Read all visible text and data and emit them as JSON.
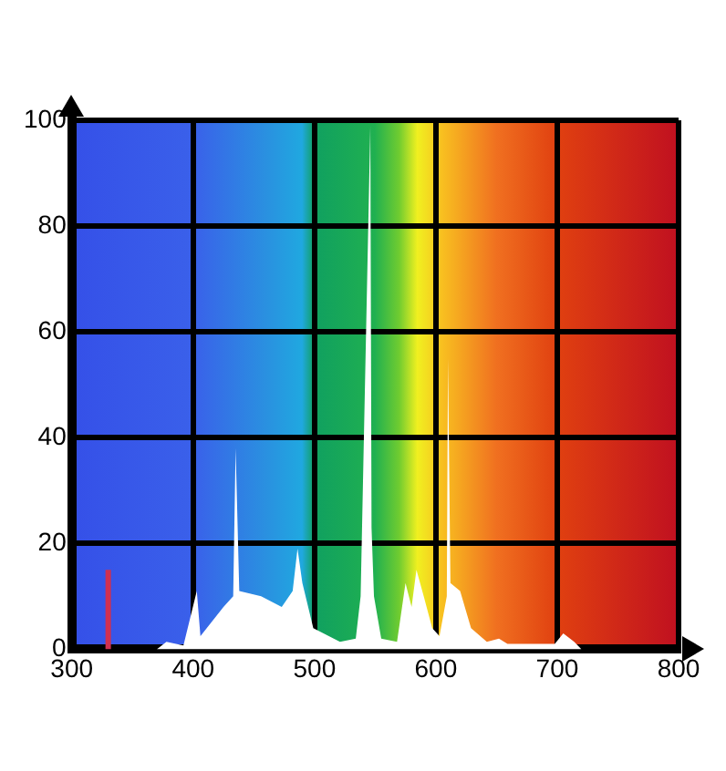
{
  "chart_data": {
    "type": "area",
    "xlim": [
      300,
      800
    ],
    "xticks": [
      300,
      400,
      500,
      600,
      700,
      800
    ],
    "ylim": [
      0,
      100
    ],
    "yticks": [
      0,
      20,
      40,
      60,
      80,
      100
    ],
    "grid": true,
    "legend": false,
    "marker": "none",
    "series": [
      {
        "color": "#ffffff",
        "x": [
          370,
          378,
          392,
          403,
          406,
          425,
          433,
          435,
          438,
          456,
          473,
          482,
          486,
          490,
          499,
          521,
          534,
          538,
          546,
          547,
          549,
          555,
          568,
          575,
          580,
          584,
          590,
          597,
          603,
          609,
          610,
          612,
          620,
          629,
          642,
          652,
          659,
          698,
          705,
          714,
          720
        ],
        "values": [
          0,
          1.4,
          0.7,
          11,
          2.5,
          8,
          10,
          38,
          11,
          10,
          8,
          11,
          19,
          12.5,
          4,
          1.4,
          2,
          10,
          99,
          23,
          10,
          2,
          1.4,
          12.5,
          8,
          15,
          10,
          4,
          2.5,
          10,
          55,
          12.5,
          11,
          4,
          1.4,
          2,
          1,
          1,
          3,
          1.4,
          0
        ]
      },
      {
        "type": "line",
        "color": "#d03050",
        "x": [
          330,
          330
        ],
        "values": [
          0,
          15
        ]
      }
    ]
  }
}
